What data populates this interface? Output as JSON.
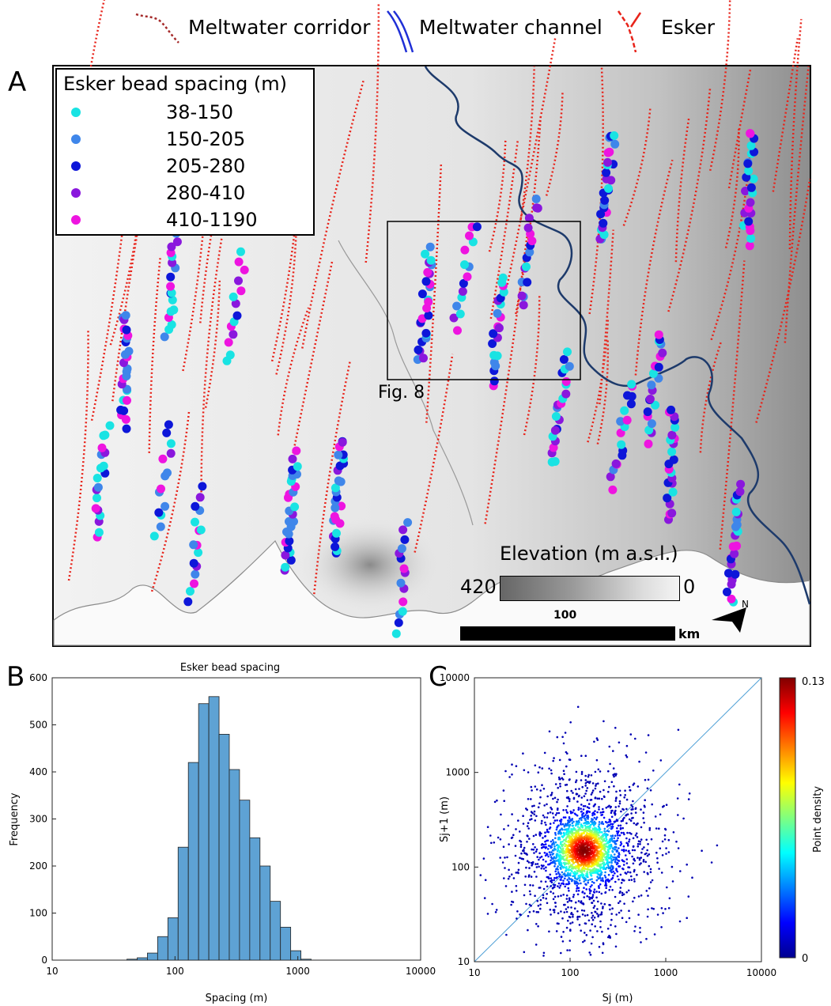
{
  "top_legend": {
    "corridor_label": "Meltwater corridor",
    "channel_label": "Meltwater channel",
    "esker_label": "Esker",
    "corridor_color": "#a52a2a",
    "channel_color": "#1f2fd6",
    "esker_color": "#e8231a"
  },
  "panel_a": {
    "letter": "A",
    "legend_title": "Esker bead spacing (m)",
    "legend_items": [
      {
        "label": "38-150",
        "color": "#19e3e3"
      },
      {
        "label": "150-205",
        "color": "#3f86ea"
      },
      {
        "label": "205-280",
        "color": "#0d16d9"
      },
      {
        "label": "280-410",
        "color": "#8a17dd"
      },
      {
        "label": "410-1190",
        "color": "#ee14e0"
      }
    ],
    "inset_label": "Fig. 8",
    "elevation_title": "Elevation (m a.s.l.)",
    "elevation_min_label": "420",
    "elevation_max_label": "0",
    "scale_value": "100",
    "scale_unit": "km",
    "north_label": "N"
  },
  "chart_data": [
    {
      "panel": "B",
      "type": "bar",
      "title": "Esker bead spacing",
      "xlabel": "Spacing (m)",
      "ylabel": "Frequency",
      "xscale": "log",
      "xlim": [
        10,
        10000
      ],
      "ylim": [
        0,
        600
      ],
      "x_ticks": [
        "10",
        "100",
        "1000",
        "10000"
      ],
      "y_ticks": [
        0,
        100,
        200,
        300,
        400,
        500,
        600
      ],
      "bar_color": "#5ea2d4",
      "bin_edges": [
        40.6,
        49.2,
        59.6,
        72.2,
        87.5,
        106,
        128.4,
        155.6,
        188.5,
        228.4,
        276.7,
        335.2,
        406.1,
        492,
        596.1,
        722.2,
        874.9,
        1060,
        1284.2
      ],
      "values": [
        2,
        5,
        15,
        50,
        90,
        240,
        420,
        545,
        560,
        480,
        405,
        340,
        260,
        200,
        125,
        70,
        20,
        2
      ]
    },
    {
      "panel": "C",
      "type": "scatter",
      "title": "",
      "xlabel": "Sj (m)",
      "ylabel": "Sj+1 (m)",
      "xscale": "log",
      "yscale": "log",
      "xlim": [
        10,
        10000
      ],
      "ylim": [
        10,
        10000
      ],
      "x_ticks": [
        "10",
        "100",
        "1000",
        "10000"
      ],
      "y_ticks": [
        "10",
        "100",
        "1000",
        "10000"
      ],
      "reference_line": "y = x",
      "density_center": [
        140,
        150
      ],
      "colorbar_label": "Point density",
      "colorbar_max": "0.13",
      "colorbar_min": "0"
    }
  ]
}
